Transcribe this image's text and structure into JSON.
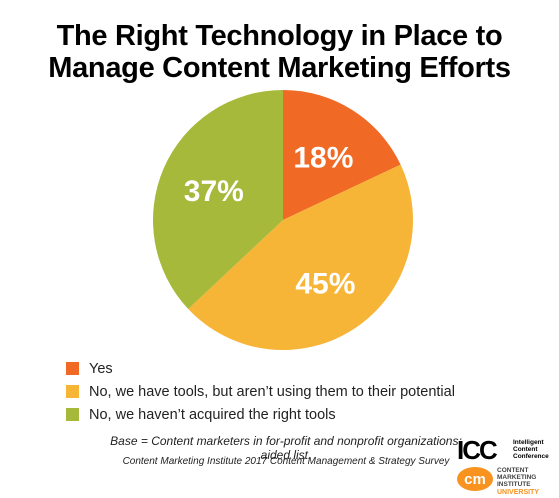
{
  "title_line1": "The Right Technology in Place to",
  "title_line2": "Manage Content Marketing Efforts",
  "chart_data": {
    "type": "pie",
    "title": "The Right Technology in Place to Manage Content Marketing Efforts",
    "categories": [
      "Yes",
      "No, we have tools, but aren’t using them to their potential",
      "No, we haven’t acquired the right tools"
    ],
    "values": [
      18,
      45,
      37
    ],
    "labels": [
      "18%",
      "45%",
      "37%"
    ],
    "colors": [
      "#f06a25",
      "#f7b538",
      "#a6b93a"
    ],
    "legend": "bottom-left"
  },
  "footnote": "Base = Content marketers in for-profit and nonprofit organizations; aided list.",
  "source": "Content Marketing Institute 2017 Content Management & Strategy Survey",
  "logos": {
    "icc_mark": "ICC",
    "icc_text": [
      "Intelligent",
      "Content",
      "Conference"
    ],
    "cmi_mark": "cm",
    "cmi_text": [
      "CONTENT",
      "MARKETING",
      "INSTITUTE"
    ],
    "cmi_sub": "UNIVERSITY",
    "icc_color": "#000000",
    "cmi_color": "#f7931e"
  }
}
